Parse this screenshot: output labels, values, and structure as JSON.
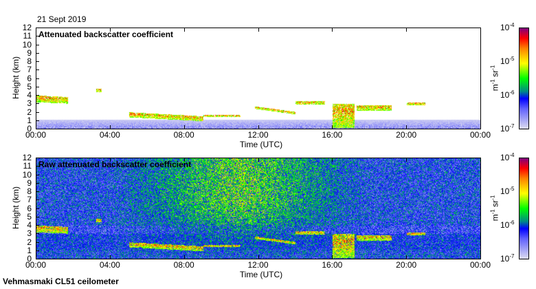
{
  "date": "21 Sept 2019",
  "footer": "Vehmasmaki CL51 ceilometer",
  "chart_data": [
    {
      "type": "heatmap",
      "title": "Attenuated backscatter coefficient",
      "xlabel": "Time (UTC)",
      "ylabel": "Height (km)",
      "xlim": [
        0,
        24
      ],
      "ylim": [
        0,
        12
      ],
      "xticks": [
        "00:00",
        "04:00",
        "08:00",
        "12:00",
        "16:00",
        "20:00",
        "00:00"
      ],
      "yticks": [
        "0",
        "1",
        "2",
        "3",
        "4",
        "5",
        "6",
        "7",
        "8",
        "9",
        "10",
        "11",
        "12"
      ],
      "colorbar": {
        "label": "m-1 sr-1",
        "ticks": [
          "10-7",
          "10-6",
          "10-5",
          "10-4"
        ],
        "range": [
          1e-07,
          0.0001
        ],
        "scale": "log"
      },
      "features": [
        {
          "t0": 0,
          "t1": 1.7,
          "h0": 3.2,
          "h1": 4.0
        },
        {
          "t0": 3.2,
          "t1": 3.5,
          "h0": 4.4,
          "h1": 4.8
        },
        {
          "t0": 5.0,
          "t1": 9.0,
          "h0": 0.6,
          "h1": 2.2
        },
        {
          "t0": 9.0,
          "t1": 11.0,
          "h0": 1.4,
          "h1": 1.7
        },
        {
          "t0": 11.8,
          "t1": 14.0,
          "h0": 2.0,
          "h1": 2.8
        },
        {
          "t0": 14.0,
          "t1": 15.6,
          "h0": 2.9,
          "h1": 3.3
        },
        {
          "t0": 16.0,
          "t1": 17.2,
          "h0": 0.1,
          "h1": 3.0
        },
        {
          "t0": 17.3,
          "t1": 19.2,
          "h0": 2.2,
          "h1": 2.8
        },
        {
          "t0": 20.0,
          "t1": 21.0,
          "h0": 2.8,
          "h1": 3.2
        }
      ]
    },
    {
      "type": "heatmap",
      "title": "Raw attenuated backscatter coefficient",
      "xlabel": "Time (UTC)",
      "ylabel": "Height (km)",
      "xlim": [
        0,
        24
      ],
      "ylim": [
        0,
        12
      ],
      "xticks": [
        "00:00",
        "04:00",
        "08:00",
        "12:00",
        "16:00",
        "20:00",
        "00:00"
      ],
      "yticks": [
        "0",
        "1",
        "2",
        "3",
        "4",
        "5",
        "6",
        "7",
        "8",
        "9",
        "10",
        "11",
        "12"
      ],
      "colorbar": {
        "label": "m-1 sr-1",
        "ticks": [
          "10-7",
          "10-6",
          "10-5",
          "10-4"
        ],
        "range": [
          1e-07,
          0.0001
        ],
        "scale": "log"
      }
    }
  ],
  "colorbar_unit": {
    "m": "m",
    "m_exp": "-1",
    "sr": " sr",
    "sr_exp": "-1"
  }
}
